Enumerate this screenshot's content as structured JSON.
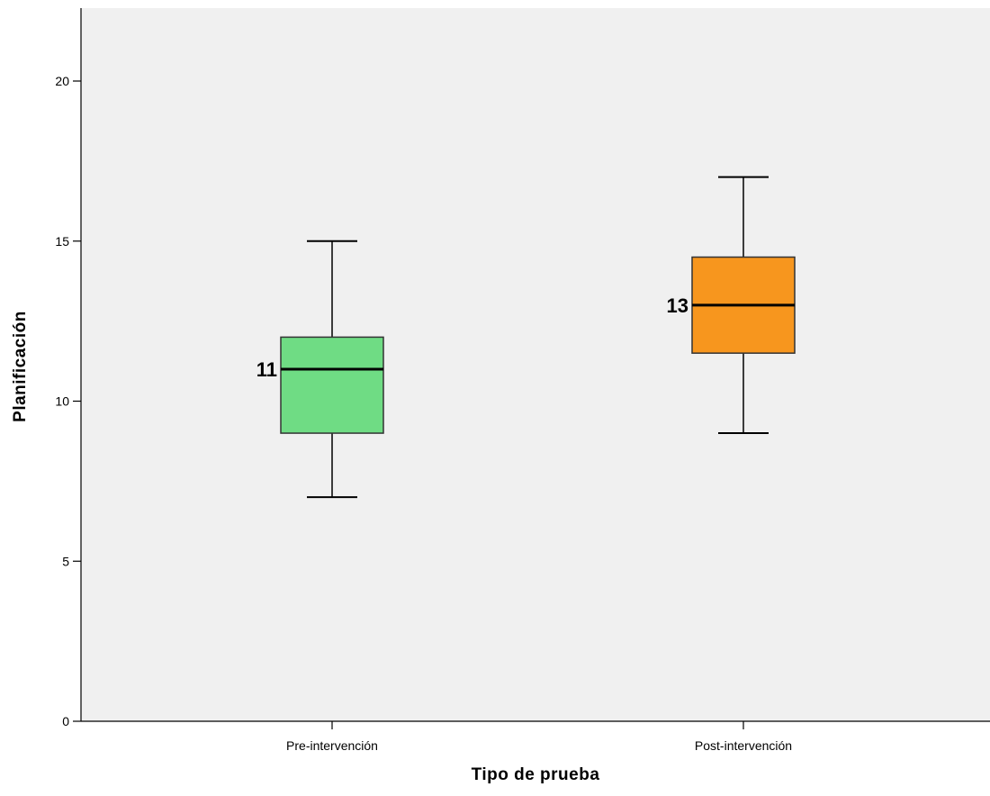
{
  "chart_data": {
    "type": "boxplot",
    "title": "",
    "xlabel": "Tipo de prueba",
    "ylabel": "Planificación",
    "ylim": [
      0,
      22
    ],
    "yticks": [
      0,
      5,
      10,
      15,
      20
    ],
    "grid": false,
    "legend": "none",
    "plot_background": "#f0f0f0",
    "categories": [
      "Pre-intervención",
      "Post-intervención"
    ],
    "boxes": [
      {
        "category": "Pre-intervención",
        "min": 7,
        "q1": 9,
        "median": 11,
        "q3": 12,
        "max": 15,
        "color": "#6fdc84",
        "median_label": "11"
      },
      {
        "category": "Post-intervención",
        "min": 9,
        "q1": 11.5,
        "median": 13,
        "q3": 14.5,
        "max": 17,
        "color": "#f7961e",
        "median_label": "13"
      }
    ]
  }
}
